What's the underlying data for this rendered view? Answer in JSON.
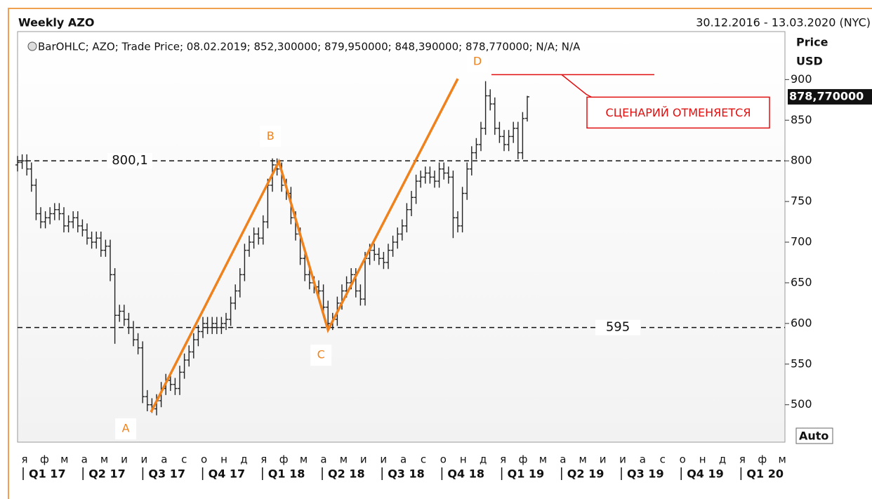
{
  "chart_data": {
    "type": "ohlc",
    "title": "Weekly AZO",
    "date_range": "30.12.2016 - 13.03.2020 (NYC)",
    "legend": "BarOHLC; AZO; Trade Price; 08.02.2019; 852,300000; 879,950000; 848,390000; 878,770000; N/A; N/A",
    "y_axis_title": [
      "Price",
      "USD"
    ],
    "scale_mode": "Auto",
    "color": "#222222",
    "ylim": [
      454,
      959
    ],
    "yticks": [
      500,
      550,
      600,
      650,
      700,
      750,
      800,
      850,
      900
    ],
    "months": [
      "я",
      "ф",
      "м",
      "а",
      "м",
      "и",
      "и",
      "а",
      "с",
      "о",
      "н",
      "д",
      "я",
      "ф",
      "м",
      "а",
      "м",
      "и",
      "и",
      "а",
      "с",
      "о",
      "н",
      "д",
      "я",
      "ф",
      "м",
      "а",
      "м",
      "и",
      "и",
      "а",
      "с",
      "о",
      "н",
      "д",
      "я",
      "ф",
      "м"
    ],
    "quarters": [
      "Q1 17",
      "Q2 17",
      "Q3 17",
      "Q4 17",
      "Q1 18",
      "Q2 18",
      "Q3 18",
      "Q4 18",
      "Q1 19",
      "Q2 19",
      "Q3 19",
      "Q4 19",
      "Q1 20"
    ],
    "open": [
      795,
      798,
      800,
      790,
      770,
      735,
      725,
      730,
      735,
      740,
      735,
      720,
      725,
      730,
      720,
      715,
      705,
      700,
      705,
      690,
      695,
      660,
      610,
      615,
      605,
      595,
      580,
      570,
      510,
      500,
      495,
      505,
      520,
      530,
      525,
      520,
      540,
      555,
      565,
      580,
      590,
      600,
      595,
      600,
      595,
      600,
      605,
      625,
      640,
      660,
      690,
      700,
      710,
      705,
      725,
      770,
      795,
      790,
      770,
      760,
      730,
      710,
      680,
      660,
      650,
      645,
      640,
      620,
      600,
      605,
      625,
      640,
      650,
      660,
      640,
      630,
      680,
      690,
      685,
      680,
      675,
      690,
      700,
      710,
      720,
      740,
      755,
      775,
      780,
      785,
      780,
      775,
      790,
      785,
      780,
      730,
      720,
      760,
      790,
      810,
      820,
      840,
      880,
      870,
      840,
      830,
      820,
      830,
      840,
      810,
      852.3
    ],
    "high": [
      806,
      808,
      808,
      798,
      778,
      743,
      738,
      743,
      748,
      748,
      743,
      733,
      738,
      738,
      728,
      723,
      713,
      713,
      713,
      703,
      703,
      668,
      623,
      623,
      613,
      603,
      588,
      578,
      518,
      508,
      513,
      528,
      538,
      538,
      533,
      548,
      563,
      573,
      588,
      598,
      608,
      608,
      608,
      608,
      608,
      613,
      633,
      648,
      668,
      698,
      708,
      718,
      718,
      733,
      778,
      803,
      803,
      798,
      778,
      768,
      738,
      718,
      688,
      668,
      658,
      653,
      648,
      628,
      613,
      633,
      648,
      658,
      668,
      668,
      648,
      688,
      698,
      698,
      693,
      688,
      698,
      708,
      718,
      728,
      748,
      763,
      783,
      788,
      793,
      793,
      788,
      798,
      798,
      793,
      788,
      738,
      768,
      798,
      818,
      828,
      848,
      898,
      888,
      878,
      848,
      838,
      838,
      848,
      848,
      860,
      879.95
    ],
    "low": [
      787,
      790,
      782,
      762,
      727,
      717,
      717,
      722,
      727,
      727,
      712,
      712,
      717,
      712,
      707,
      697,
      692,
      692,
      682,
      682,
      652,
      575,
      602,
      597,
      587,
      572,
      562,
      502,
      492,
      490,
      487,
      497,
      512,
      517,
      512,
      512,
      532,
      547,
      557,
      572,
      582,
      587,
      587,
      587,
      587,
      592,
      597,
      617,
      632,
      652,
      682,
      692,
      697,
      697,
      717,
      762,
      782,
      762,
      752,
      722,
      702,
      672,
      652,
      642,
      637,
      632,
      612,
      590,
      592,
      597,
      617,
      632,
      642,
      632,
      622,
      622,
      672,
      677,
      672,
      667,
      667,
      682,
      692,
      702,
      712,
      732,
      747,
      767,
      772,
      772,
      767,
      767,
      777,
      772,
      705,
      712,
      712,
      752,
      782,
      802,
      812,
      832,
      862,
      832,
      822,
      812,
      812,
      822,
      802,
      802,
      848.39
    ],
    "close": [
      798,
      800,
      790,
      770,
      735,
      725,
      730,
      735,
      740,
      735,
      720,
      725,
      730,
      720,
      715,
      705,
      700,
      705,
      690,
      695,
      660,
      610,
      615,
      605,
      595,
      580,
      570,
      510,
      500,
      495,
      505,
      520,
      530,
      525,
      520,
      540,
      555,
      565,
      580,
      590,
      600,
      595,
      600,
      595,
      600,
      605,
      625,
      640,
      660,
      690,
      700,
      710,
      705,
      725,
      770,
      795,
      790,
      770,
      760,
      730,
      710,
      680,
      660,
      650,
      645,
      640,
      620,
      600,
      605,
      625,
      640,
      650,
      660,
      640,
      630,
      680,
      690,
      685,
      680,
      675,
      690,
      700,
      710,
      720,
      740,
      755,
      775,
      780,
      785,
      780,
      775,
      790,
      785,
      780,
      730,
      720,
      760,
      790,
      810,
      820,
      840,
      880,
      870,
      840,
      830,
      820,
      830,
      840,
      810,
      852,
      878.77
    ],
    "levels": [
      {
        "value": 800.1,
        "label": "800,1"
      },
      {
        "value": 595,
        "label": "595"
      }
    ],
    "pattern": {
      "labels": [
        "A",
        "B",
        "C",
        "D"
      ],
      "x": [
        28.8,
        56.4,
        67,
        95
      ],
      "y": [
        491,
        799,
        592,
        901
      ],
      "color": "#f0821e"
    },
    "invalidation": {
      "value": 906,
      "label": "СЦЕНАРИЙ ОТМЕНЯЕТСЯ",
      "color": "#e01010"
    },
    "last_price": {
      "value": 878.77,
      "label": "878,770000"
    }
  }
}
